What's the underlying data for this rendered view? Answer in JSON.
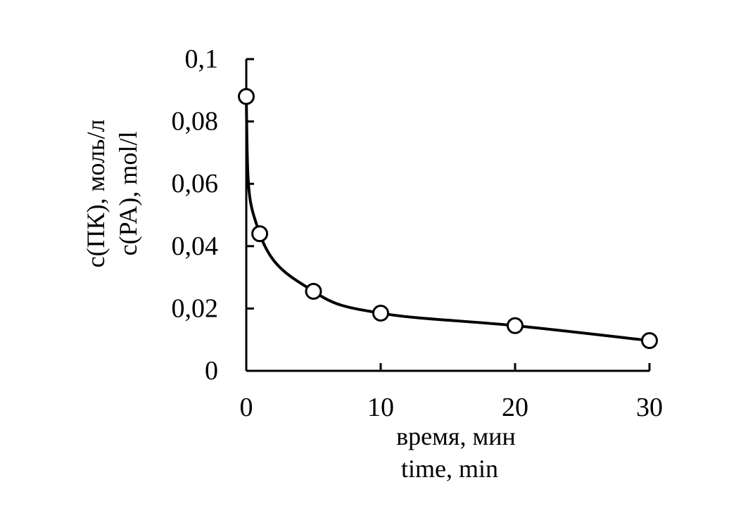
{
  "chart_data": {
    "type": "scatter",
    "title": "",
    "xlabel": [
      "время, мин",
      "time, min"
    ],
    "ylabel": [
      "с(ПК), моль/л",
      "c(PA), mol/l"
    ],
    "xlim": [
      0,
      30
    ],
    "ylim": [
      0,
      0.1
    ],
    "x_ticks": [
      0,
      10,
      20,
      30
    ],
    "x_tick_labels": [
      "0",
      "10",
      "20",
      "30"
    ],
    "y_ticks": [
      0,
      0.02,
      0.04,
      0.06,
      0.08,
      0.1
    ],
    "y_tick_labels": [
      "0",
      "0,02",
      "0,04",
      "0,06",
      "0,08",
      "0,1"
    ],
    "grid": false,
    "legend": "none",
    "series": [
      {
        "x": [
          0,
          1,
          5,
          10,
          20,
          30
        ],
        "y": [
          0.088,
          0.044,
          0.0255,
          0.0185,
          0.0145,
          0.0097
        ],
        "marker": "open-circle",
        "line": "smooth",
        "color": "#000000"
      }
    ]
  }
}
